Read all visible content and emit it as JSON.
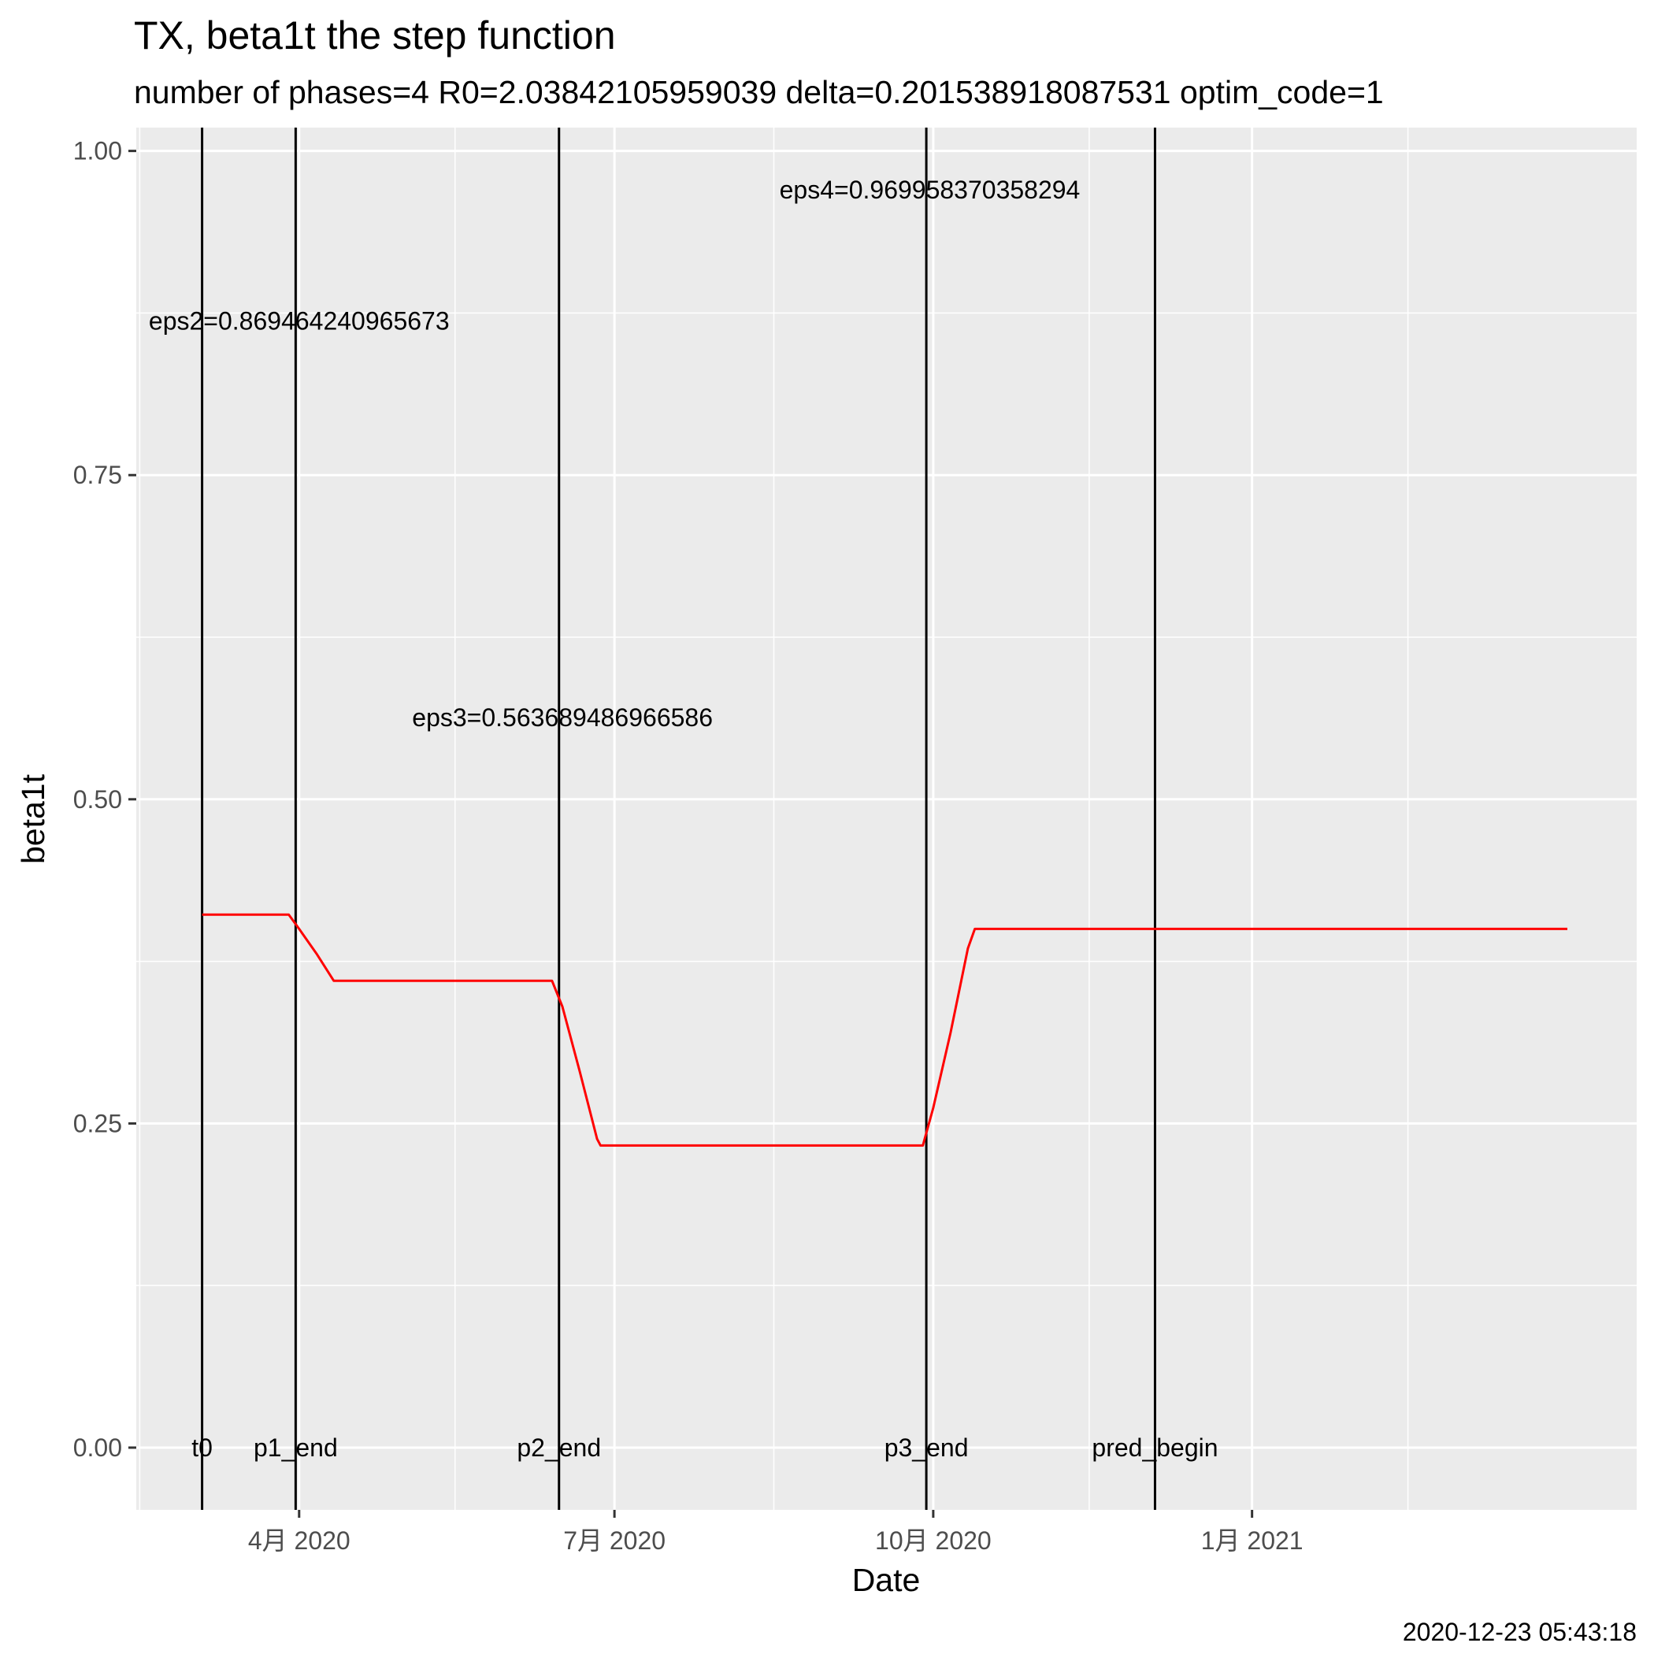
{
  "chart_data": {
    "type": "line",
    "title": "TX, beta1t the step function",
    "subtitle": "number of phases=4   R0=2.03842105959039   delta=0.201538918087531   optim_code=1",
    "xlabel": "Date",
    "ylabel": "beta1t",
    "caption": "2020-12-23 05:43:18",
    "ylim": [
      -0.048,
      1.018
    ],
    "xlim": [
      "2020-02-14",
      "2021-04-22"
    ],
    "x_ticks": [
      {
        "date": "2020-04-01",
        "label": "4月 2020"
      },
      {
        "date": "2020-07-01",
        "label": "7月 2020"
      },
      {
        "date": "2020-10-01",
        "label": "10月 2020"
      },
      {
        "date": "2021-01-01",
        "label": "1月 2021"
      }
    ],
    "x_minor_ticks": [
      "2020-02-15",
      "2020-05-16",
      "2020-08-16",
      "2020-11-15",
      "2021-02-15"
    ],
    "y_ticks": [
      0,
      0.25,
      0.5,
      0.75,
      1
    ],
    "y_tick_labels": [
      "0.00",
      "0.25",
      "0.50",
      "0.75",
      "1.00"
    ],
    "y_minor_ticks": [
      0.125,
      0.375,
      0.625,
      0.875
    ],
    "grid": true,
    "panel_background": "#EBEBEB",
    "series": [
      {
        "color": "#FF0000",
        "points": [
          {
            "x": "2020-03-04",
            "y": 0.411
          },
          {
            "x": "2020-03-29",
            "y": 0.411
          },
          {
            "x": "2020-04-01",
            "y": 0.4
          },
          {
            "x": "2020-04-06",
            "y": 0.381
          },
          {
            "x": "2020-04-11",
            "y": 0.36
          },
          {
            "x": "2020-06-13",
            "y": 0.36
          },
          {
            "x": "2020-06-16",
            "y": 0.34
          },
          {
            "x": "2020-06-21",
            "y": 0.29
          },
          {
            "x": "2020-06-26",
            "y": 0.238
          },
          {
            "x": "2020-06-27",
            "y": 0.233
          },
          {
            "x": "2020-09-28",
            "y": 0.233
          },
          {
            "x": "2020-10-01",
            "y": 0.262
          },
          {
            "x": "2020-10-06",
            "y": 0.32
          },
          {
            "x": "2020-10-11",
            "y": 0.385
          },
          {
            "x": "2020-10-13",
            "y": 0.4
          },
          {
            "x": "2021-04-02",
            "y": 0.4
          }
        ]
      }
    ],
    "vlines": [
      {
        "date": "2020-03-04",
        "label": "t0"
      },
      {
        "date": "2020-03-31",
        "label": "p1_end"
      },
      {
        "date": "2020-06-15",
        "label": "p2_end"
      },
      {
        "date": "2020-09-29",
        "label": "p3_end"
      },
      {
        "date": "2020-12-04",
        "label": "pred_begin"
      }
    ],
    "annotations": [
      {
        "date": "2020-04-01",
        "y": 0.869,
        "text": "eps2=0.869464240965673"
      },
      {
        "date": "2020-06-16",
        "y": 0.563,
        "text": "eps3=0.563689486966586"
      },
      {
        "date": "2020-09-30",
        "y": 0.97,
        "text": "eps4=0.969958370358294"
      }
    ]
  }
}
